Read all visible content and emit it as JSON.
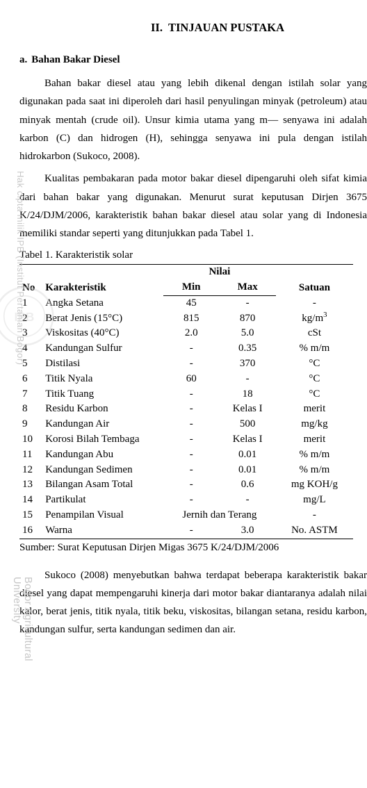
{
  "chapter": {
    "num": "II.",
    "title": "TINJAUAN PUSTAKA"
  },
  "section": {
    "letter": "a.",
    "title": "Bahan Bakar Diesel"
  },
  "paragraphs": {
    "p1": "Bahan bakar diesel atau yang lebih dikenal dengan istilah solar yang digunakan pada saat ini diperoleh dari hasil penyulingan minyak (petroleum) atau minyak mentah (crude oil). Unsur kimia utama yang m— senyawa ini adalah karbon (C) dan hidrogen (H), sehingga senyawa ini pula dengan istilah hidrokarbon (Sukoco, 2008).",
    "p2": "Kualitas pembakaran pada motor bakar diesel dipengaruhi oleh sifat kimia dari bahan bakar yang digunakan. Menurut surat keputusan Dirjen 3675 K/24/DJM/2006, karakteristik bahan bakar diesel atau solar yang di Indonesia memiliki standar seperti yang ditunjukkan pada Tabel 1.",
    "p3": "Sukoco (2008) menyebutkan bahwa terdapat beberapa karakteristik bakar diesel yang dapat mempengaruhi kinerja dari motor bakar diantaranya adalah nilai kalor, berat jenis, titik nyala, titik beku, viskositas, bilangan setana, residu karbon, kandungan sulfur, serta kandungan sedimen dan air."
  },
  "table": {
    "caption": "Tabel 1. Karakteristik solar",
    "headers": {
      "no": "No",
      "karak": "Karakteristik",
      "nilai": "Nilai",
      "min": "Min",
      "max": "Max",
      "satuan": "Satuan"
    },
    "rows": [
      {
        "no": "1",
        "k": "Angka Setana",
        "min": "45",
        "max": "-",
        "s": "-"
      },
      {
        "no": "2",
        "k": "Berat Jenis (15°C)",
        "min": "815",
        "max": "870",
        "s": "kg/m³"
      },
      {
        "no": "3",
        "k": "Viskositas (40°C)",
        "min": "2.0",
        "max": "5.0",
        "s": "cSt"
      },
      {
        "no": "4",
        "k": "Kandungan Sulfur",
        "min": "-",
        "max": "0.35",
        "s": "% m/m"
      },
      {
        "no": "5",
        "k": "Distilasi",
        "min": "-",
        "max": "370",
        "s": "°C"
      },
      {
        "no": "6",
        "k": "Titik Nyala",
        "min": "60",
        "max": "-",
        "s": "°C"
      },
      {
        "no": "7",
        "k": "Titik Tuang",
        "min": "-",
        "max": "18",
        "s": "°C"
      },
      {
        "no": "8",
        "k": "Residu Karbon",
        "min": "-",
        "max": "Kelas I",
        "s": "merit"
      },
      {
        "no": "9",
        "k": "Kandungan Air",
        "min": "-",
        "max": "500",
        "s": "mg/kg"
      },
      {
        "no": "10",
        "k": "Korosi Bilah Tembaga",
        "min": "-",
        "max": "Kelas I",
        "s": "merit"
      },
      {
        "no": "11",
        "k": "Kandungan Abu",
        "min": "-",
        "max": "0.01",
        "s": "% m/m"
      },
      {
        "no": "12",
        "k": "Kandungan Sedimen",
        "min": "-",
        "max": "0.01",
        "s": "% m/m"
      },
      {
        "no": "13",
        "k": "Bilangan Asam Total",
        "min": "-",
        "max": "0.6",
        "s": "mg KOH/g"
      },
      {
        "no": "14",
        "k": "Partikulat",
        "min": "-",
        "max": "-",
        "s": "mg/L"
      },
      {
        "no": "15",
        "k": "Penampilan Visual",
        "min_max": "Jernih dan Terang",
        "s": "-"
      },
      {
        "no": "16",
        "k": "Warna",
        "min": "-",
        "max": "3.0",
        "s": "No. ASTM"
      }
    ],
    "source": "Sumber: Surat Keputusan Dirjen Migas 3675 K/24/DJM/2006"
  },
  "watermark": {
    "line1": "Hak cipta milik IPB (Institut Pertanian Bogor)",
    "line2": "Bogor Agricultural University",
    "circle_text": "IPB",
    "circle_colors": {
      "outer": "#d9d9d9",
      "inner": "#e8e8e8"
    }
  },
  "style": {
    "font_family": "Times New Roman",
    "text_color": "#000000",
    "bg_color": "#ffffff",
    "rule_color": "#000000",
    "watermark_color": "#c8c8c8"
  }
}
